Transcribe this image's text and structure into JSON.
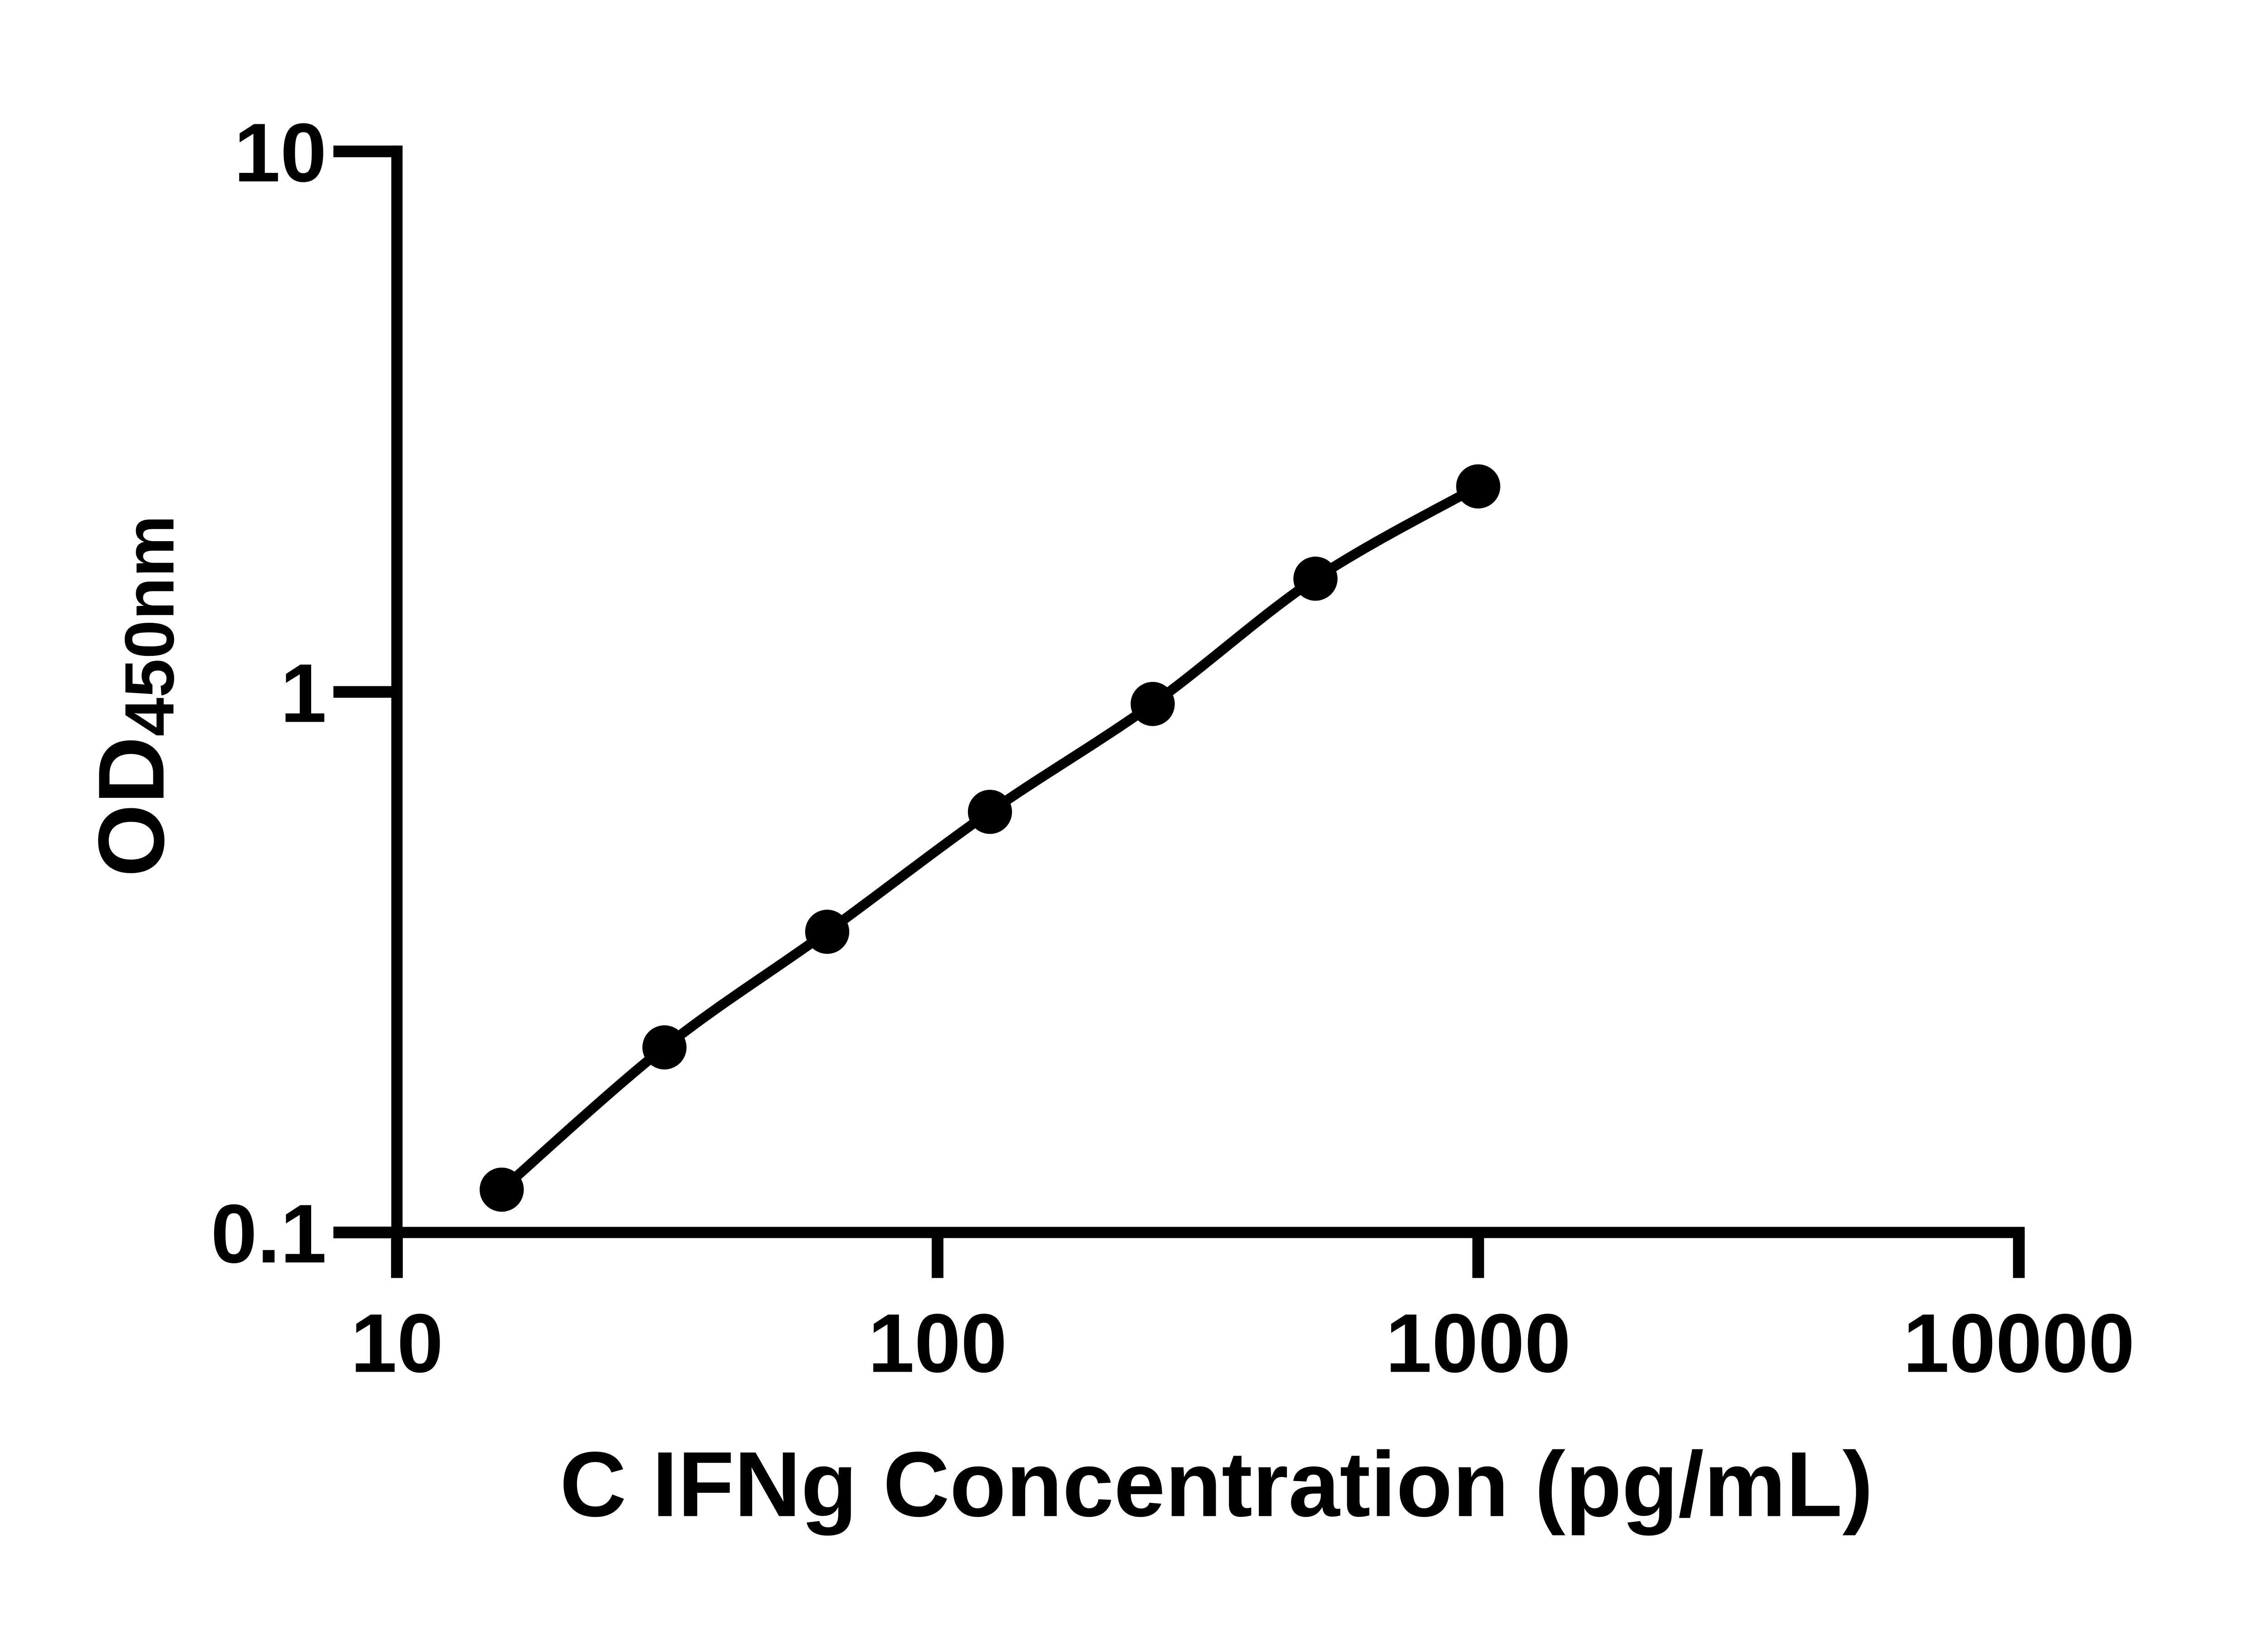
{
  "chart_data": {
    "type": "scatter",
    "subtype": "log-log standard curve with fitted line",
    "title": "",
    "xlabel": "C IFNg Concentration (pg/mL)",
    "ylabel_main": "OD",
    "ylabel_sub": "450nm",
    "x_scale": "log10",
    "y_scale": "log10",
    "xlim": [
      10,
      10000
    ],
    "ylim": [
      0.1,
      10
    ],
    "grid": "off",
    "legend": "none",
    "x_ticks": [
      {
        "value": 10,
        "label": "10"
      },
      {
        "value": 100,
        "label": "100"
      },
      {
        "value": 1000,
        "label": "1000"
      },
      {
        "value": 10000,
        "label": "10000"
      }
    ],
    "y_ticks": [
      {
        "value": 0.1,
        "label": "0.1"
      },
      {
        "value": 1,
        "label": "1"
      },
      {
        "value": 10,
        "label": "10"
      }
    ],
    "points": [
      {
        "x": 15.625,
        "y": 0.12
      },
      {
        "x": 31.25,
        "y": 0.22
      },
      {
        "x": 62.5,
        "y": 0.36
      },
      {
        "x": 125,
        "y": 0.6
      },
      {
        "x": 250,
        "y": 0.95
      },
      {
        "x": 500,
        "y": 1.62
      },
      {
        "x": 1000,
        "y": 2.4
      }
    ],
    "marker": "filled-circle",
    "marker_color": "#000000",
    "line_color": "#000000",
    "axis_color": "#000000",
    "background_color": "#ffffff"
  }
}
